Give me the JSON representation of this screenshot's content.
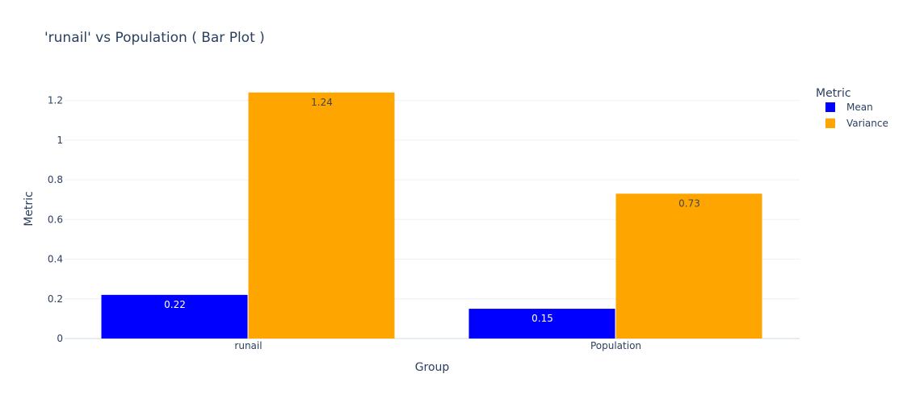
{
  "chart_data": {
    "type": "bar",
    "title": "'runail' vs Population ( Bar Plot )",
    "xlabel": "Group",
    "ylabel": "Metric",
    "categories": [
      "runail",
      "Population"
    ],
    "series": [
      {
        "name": "Mean",
        "color": "#0000ff",
        "values": [
          0.22,
          0.15
        ],
        "labels": [
          "0.22",
          "0.15"
        ],
        "label_color": "#ffffff"
      },
      {
        "name": "Variance",
        "color": "#ffa500",
        "values": [
          1.24,
          0.73
        ],
        "labels": [
          "1.24",
          "0.73"
        ],
        "label_color": "#444444"
      }
    ],
    "ylim": [
      0,
      1.3
    ],
    "yticks": [
      0,
      0.2,
      0.4,
      0.6,
      0.8,
      1,
      1.2
    ],
    "ytick_labels": [
      "0",
      "0.2",
      "0.4",
      "0.6",
      "0.8",
      "1",
      "1.2"
    ],
    "grid": true,
    "legend": {
      "title": "Metric",
      "position": "top-right"
    }
  }
}
